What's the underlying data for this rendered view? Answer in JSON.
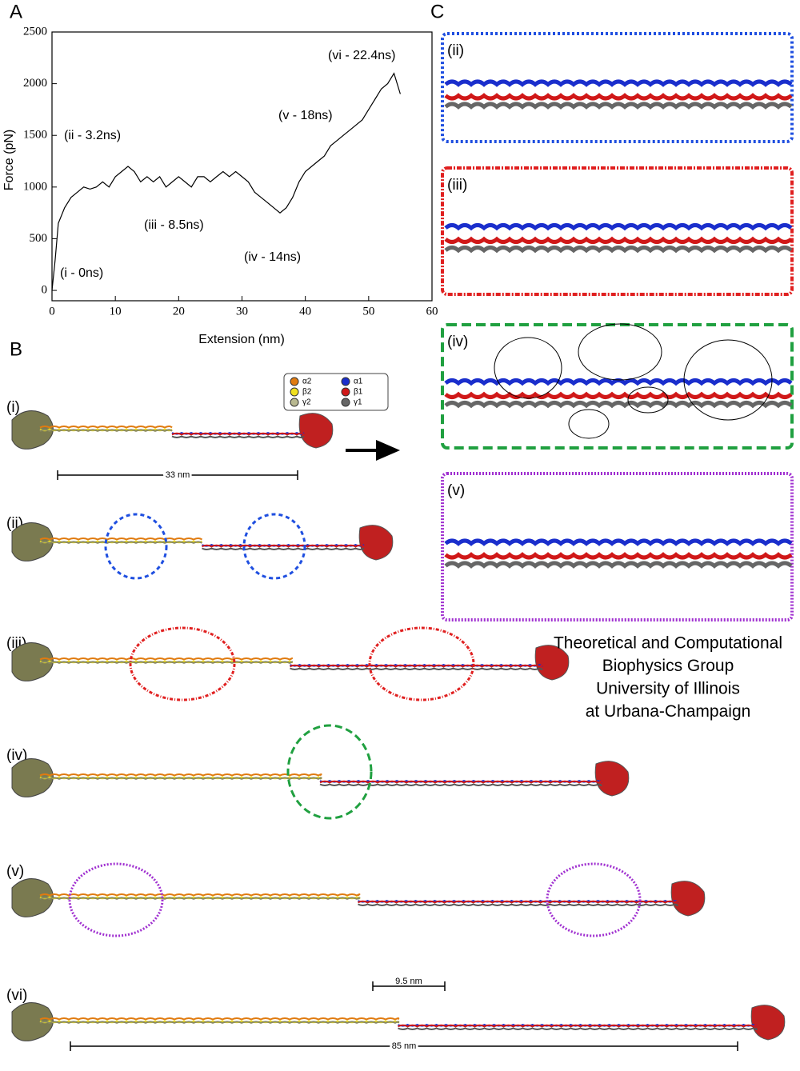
{
  "panels": {
    "a": "A",
    "b": "B",
    "c": "C"
  },
  "chart_data": {
    "type": "line",
    "x_label": "Extension (nm)",
    "y_label": "Force (pN)",
    "xlim": [
      0,
      60
    ],
    "xticks": [
      0,
      10,
      20,
      30,
      40,
      50,
      60
    ],
    "ylim": [
      -100,
      2500
    ],
    "yticks": [
      0,
      500,
      1000,
      1500,
      2000,
      2500
    ],
    "color": "#000000",
    "x": [
      0,
      0.5,
      1,
      2,
      3,
      4,
      5,
      6,
      7,
      8,
      9,
      10,
      11,
      12,
      13,
      14,
      15,
      16,
      17,
      18,
      19,
      20,
      21,
      22,
      23,
      24,
      25,
      26,
      27,
      28,
      29,
      30,
      31,
      32,
      33,
      34,
      35,
      36,
      37,
      38,
      39,
      40,
      41,
      42,
      43,
      44,
      45,
      46,
      47,
      48,
      49,
      50,
      51,
      52,
      53,
      54,
      55
    ],
    "values": [
      0,
      300,
      650,
      800,
      900,
      950,
      1000,
      980,
      1000,
      1050,
      1000,
      1100,
      1150,
      1200,
      1150,
      1050,
      1100,
      1050,
      1100,
      1000,
      1050,
      1100,
      1050,
      1000,
      1100,
      1100,
      1050,
      1100,
      1150,
      1100,
      1150,
      1100,
      1050,
      950,
      900,
      850,
      800,
      750,
      800,
      900,
      1050,
      1150,
      1200,
      1250,
      1300,
      1400,
      1450,
      1500,
      1550,
      1600,
      1650,
      1750,
      1850,
      1950,
      2000,
      2100,
      1900
    ],
    "annotations": [
      "(i - 0ns)",
      "(ii - 3.2ns)",
      "(iii - 8.5ns)",
      "(iv - 14ns)",
      "(v - 18ns)",
      "(vi - 22.4ns)"
    ]
  },
  "panel_b": {
    "rows": [
      "(i)",
      "(ii)",
      "(iii)",
      "(iv)",
      "(v)",
      "(vi)"
    ],
    "legend": [
      "α2",
      "β2",
      "γ2",
      "α1",
      "β1",
      "γ1"
    ],
    "scale_bars": [
      "33 nm",
      "9.5 nm",
      "85 nm"
    ]
  },
  "panel_c": {
    "boxes": [
      "(ii)",
      "(iii)",
      "(iv)",
      "(v)"
    ]
  },
  "group": [
    "Theoretical and Computational",
    "Biophysics Group",
    "University of Illinois",
    "at Urbana-Champaign"
  ]
}
